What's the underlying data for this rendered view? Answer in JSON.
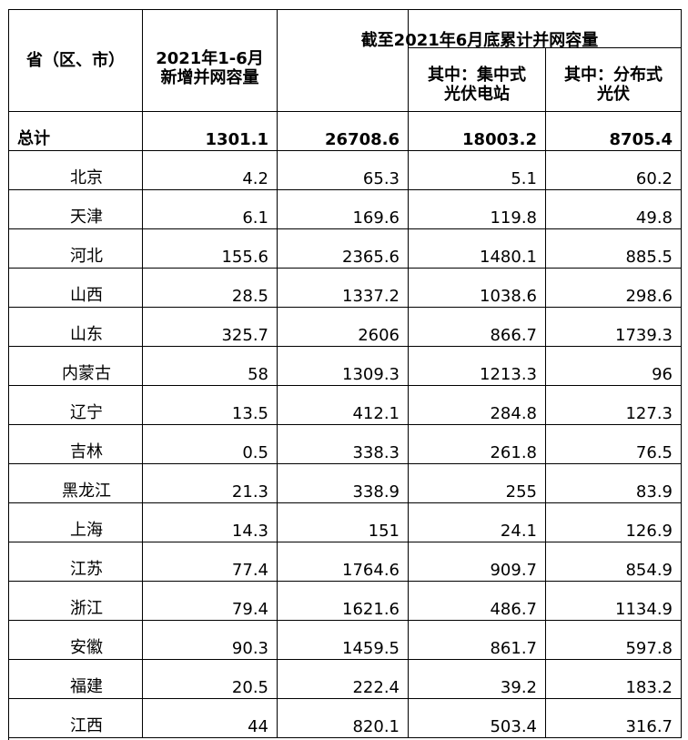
{
  "header": {
    "region": "省（区、市）",
    "added": [
      "2021年1-6月",
      "新增并网容量"
    ],
    "cumulative": "截至2021年6月底累计并网容量",
    "centralized": [
      "其中：集中式",
      "光伏电站"
    ],
    "distributed": [
      "其中：分布式",
      "光伏"
    ]
  },
  "table": {
    "rows": [
      [
        "总计",
        1301.1,
        26708.6,
        18003.2,
        8705.4
      ],
      [
        "北京",
        4.2,
        65.3,
        5.1,
        60.2
      ],
      [
        "天津",
        6.1,
        169.6,
        119.8,
        49.8
      ],
      [
        "河北",
        155.6,
        2365.6,
        1480.1,
        885.5
      ],
      [
        "山西",
        28.5,
        1337.2,
        1038.6,
        298.6
      ],
      [
        "山东",
        325.7,
        2606,
        866.7,
        1739.3
      ],
      [
        "内蒙古",
        58,
        1309.3,
        1213.3,
        96
      ],
      [
        "辽宁",
        13.5,
        412.1,
        284.8,
        127.3
      ],
      [
        "吉林",
        0.5,
        338.3,
        261.8,
        76.5
      ],
      [
        "黑龙江",
        21.3,
        338.9,
        255,
        83.9
      ],
      [
        "上海",
        14.3,
        151,
        24.1,
        126.9
      ],
      [
        "江苏",
        77.4,
        1764.6,
        909.7,
        854.9
      ],
      [
        "浙江",
        79.4,
        1621.6,
        486.7,
        1134.9
      ],
      [
        "安徽",
        90.3,
        1459.5,
        861.7,
        597.8
      ],
      [
        "福建",
        20.5,
        222.4,
        39.2,
        183.2
      ],
      [
        "江西",
        44,
        820.1,
        503.4,
        316.7
      ]
    ]
  }
}
